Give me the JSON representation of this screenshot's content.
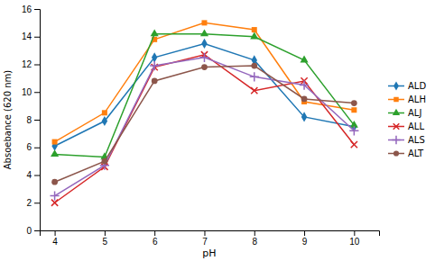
{
  "chart_data": {
    "type": "line",
    "xlabel": "pH",
    "ylabel": "Absoebance (620 nm)",
    "x": [
      4,
      5,
      6,
      7,
      8,
      9,
      10
    ],
    "series": [
      {
        "name": "ALD",
        "marker": "diamond",
        "values": [
          6.1,
          7.9,
          12.5,
          13.5,
          12.3,
          8.2,
          7.5
        ]
      },
      {
        "name": "ALH",
        "marker": "square",
        "values": [
          6.4,
          8.5,
          13.8,
          15.0,
          14.5,
          9.3,
          8.7
        ]
      },
      {
        "name": "ALJ",
        "marker": "triangle",
        "values": [
          5.5,
          5.3,
          14.2,
          14.2,
          14.0,
          12.3,
          7.6
        ]
      },
      {
        "name": "ALL",
        "marker": "x",
        "values": [
          2.0,
          4.6,
          11.8,
          12.7,
          10.1,
          10.8,
          6.2
        ]
      },
      {
        "name": "ALS",
        "marker": "plus",
        "values": [
          2.5,
          4.7,
          11.9,
          12.5,
          11.1,
          10.5,
          7.2
        ]
      },
      {
        "name": "ALT",
        "marker": "circle",
        "values": [
          3.5,
          5.0,
          10.8,
          11.8,
          11.9,
          9.5,
          9.2
        ]
      }
    ],
    "xlim": [
      3.7,
      10.5
    ],
    "xticks": [
      4,
      5,
      6,
      7,
      8,
      9,
      10
    ],
    "ylim": [
      0,
      16
    ],
    "yticks": [
      0,
      2,
      4,
      6,
      8,
      10,
      12,
      14,
      16
    ],
    "grid": false,
    "legend": "right"
  }
}
